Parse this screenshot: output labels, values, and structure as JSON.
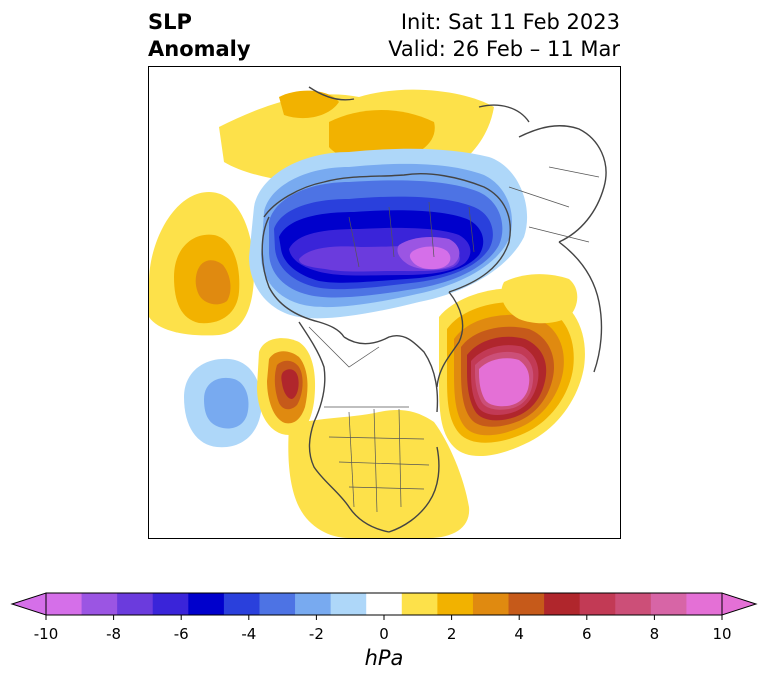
{
  "title": {
    "left_line1": "SLP",
    "left_line2": "Anomaly",
    "right_line1": "Init: Sat 11 Feb 2023",
    "right_line2": "Valid: 26 Feb – 11 Mar"
  },
  "colorbar": {
    "units": "hPa",
    "ticks": [
      "-10",
      "-8",
      "-6",
      "-4",
      "-2",
      "0",
      "2",
      "4",
      "6",
      "8",
      "10"
    ],
    "levels": [
      -10,
      -9,
      -8,
      -7,
      -6,
      -5,
      -4,
      -3,
      -2,
      -1,
      1,
      2,
      3,
      4,
      5,
      6,
      7,
      8,
      9,
      10
    ],
    "colors": [
      "#d56fe9",
      "#9b55e3",
      "#6b3bdd",
      "#3a24d9",
      "#0000cc",
      "#2a40dc",
      "#4d73e4",
      "#78aaf0",
      "#aed7f9",
      "#ffffff",
      "#fde14a",
      "#f2b200",
      "#e08a10",
      "#c65a1a",
      "#b0262c",
      "#c23a55",
      "#cc4f78",
      "#d765a6",
      "#e470d6"
    ],
    "extend_min_color": "#d56fe9",
    "extend_max_color": "#e470d6"
  },
  "map": {
    "projection": "North Polar Stereographic",
    "variable": "Sea level pressure anomaly"
  }
}
